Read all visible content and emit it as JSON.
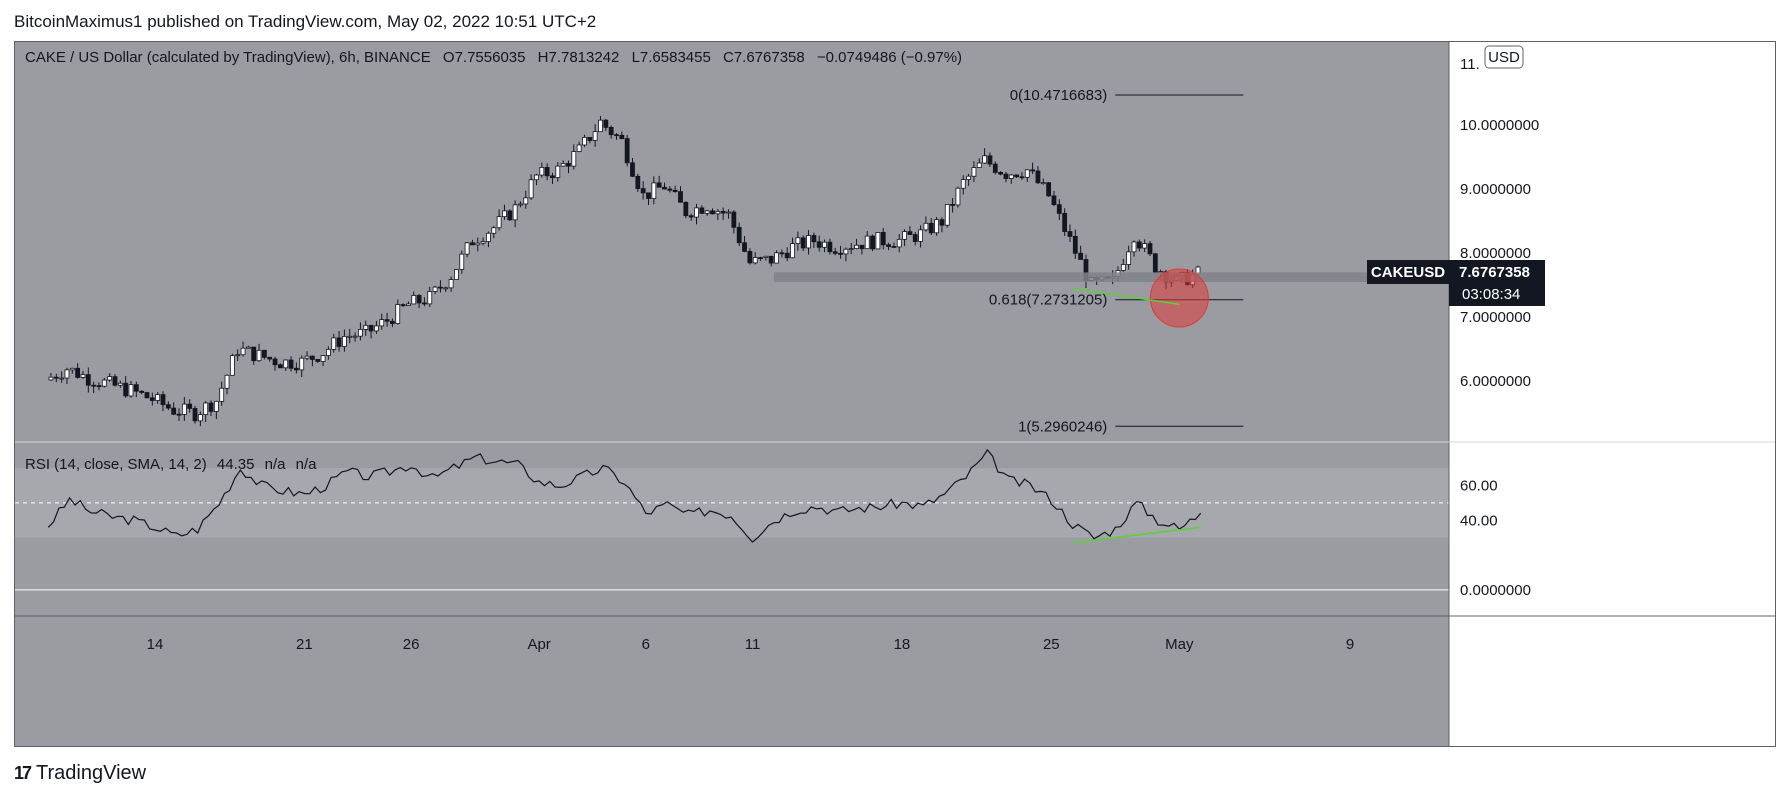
{
  "published_by": "BitcoinMaximus1 published on TradingView.com, May 02, 2022 10:51 UTC+2",
  "header": {
    "symbol": "CAKE / US Dollar (calculated by TradingView), 6h, BINANCE",
    "o_label": "O",
    "o_value": "7.7556035",
    "h_label": "H",
    "h_value": "7.7813242",
    "l_label": "L",
    "l_value": "7.6583455",
    "c_label": "C",
    "c_value": "7.6767358",
    "change": "−0.0749486 (−0.97%)"
  },
  "currency_label": "USD",
  "price_tag": {
    "symbol": "CAKEUSD",
    "price": "7.6767358",
    "countdown": "03:08:34"
  },
  "rsi_legend": {
    "label": "RSI (14, close, SMA, 14, 2)",
    "value": "44.35",
    "na1": "n/a",
    "na2": "n/a"
  },
  "footer_brand": "TradingView",
  "colors": {
    "price_bg": "#9a9ca1",
    "rsi_band": "#a6a8ad",
    "up_candle": "#ffffff",
    "down_candle": "#131722",
    "support_zone": "#7f8288",
    "highlight_circle": "#e03a3a",
    "divergence_line": "#5ad13a"
  },
  "chart_data": [
    {
      "type": "candlestick",
      "title": "CAKE / US Dollar (calculated by TradingView), 6h, BINANCE",
      "timeframe": "6h",
      "y_axis": {
        "ticks": [
          6,
          7,
          8,
          9,
          10
        ],
        "tick_labels": [
          "6.0000000",
          "7.0000000",
          "8.0000000",
          "9.0000000",
          "10.0000000"
        ],
        "top_label_partial": "11.",
        "range": [
          5.05,
          11.3
        ]
      },
      "x_axis": {
        "tick_labels": [
          "14",
          "21",
          "26",
          "Apr",
          "6",
          "11",
          "18",
          "25",
          "May",
          "9"
        ]
      },
      "close_path": [
        [
          "2022-03-09",
          6.02
        ],
        [
          "2022-03-10",
          6.2
        ],
        [
          "2022-03-11",
          6.05
        ],
        [
          "2022-03-12",
          5.95
        ],
        [
          "2022-03-13",
          5.85
        ],
        [
          "2022-03-14",
          5.72
        ],
        [
          "2022-03-15",
          5.55
        ],
        [
          "2022-03-16",
          5.5
        ],
        [
          "2022-03-17",
          5.7
        ],
        [
          "2022-03-18",
          6.5
        ],
        [
          "2022-03-19",
          6.4
        ],
        [
          "2022-03-20",
          6.3
        ],
        [
          "2022-03-21",
          6.3
        ],
        [
          "2022-03-22",
          6.45
        ],
        [
          "2022-03-23",
          6.7
        ],
        [
          "2022-03-24",
          6.75
        ],
        [
          "2022-03-25",
          6.95
        ],
        [
          "2022-03-26",
          7.2
        ],
        [
          "2022-03-27",
          7.3
        ],
        [
          "2022-03-28",
          7.65
        ],
        [
          "2022-03-29",
          8.2
        ],
        [
          "2022-03-30",
          8.4
        ],
        [
          "2022-03-31",
          8.7
        ],
        [
          "2022-04-01",
          9.2
        ],
        [
          "2022-04-02",
          9.3
        ],
        [
          "2022-04-03",
          9.6
        ],
        [
          "2022-04-04",
          10.05
        ],
        [
          "2022-04-05",
          9.75
        ],
        [
          "2022-04-06",
          8.9
        ],
        [
          "2022-04-07",
          9.05
        ],
        [
          "2022-04-08",
          8.65
        ],
        [
          "2022-04-09",
          8.75
        ],
        [
          "2022-04-10",
          8.6
        ],
        [
          "2022-04-11",
          7.85
        ],
        [
          "2022-04-12",
          7.9
        ],
        [
          "2022-04-13",
          8.1
        ],
        [
          "2022-04-14",
          8.2
        ],
        [
          "2022-04-15",
          8.1
        ],
        [
          "2022-04-16",
          8.15
        ],
        [
          "2022-04-17",
          8.2
        ],
        [
          "2022-04-18",
          8.2
        ],
        [
          "2022-04-19",
          8.3
        ],
        [
          "2022-04-20",
          8.5
        ],
        [
          "2022-04-21",
          9.1
        ],
        [
          "2022-04-22",
          9.45
        ],
        [
          "2022-04-23",
          9.25
        ],
        [
          "2022-04-24",
          9.3
        ],
        [
          "2022-04-25",
          8.9
        ],
        [
          "2022-04-26",
          8.2
        ],
        [
          "2022-04-27",
          7.5
        ],
        [
          "2022-04-28",
          7.55
        ],
        [
          "2022-04-29",
          8.3
        ],
        [
          "2022-04-30",
          7.8
        ],
        [
          "2022-05-01",
          7.55
        ],
        [
          "2022-05-02",
          7.68
        ]
      ],
      "fibonacci": [
        {
          "level": "0",
          "price": 10.4716683,
          "label": "0(10.4716683)"
        },
        {
          "level": "0.618",
          "price": 7.2731205,
          "label": "0.618(7.2731205)"
        },
        {
          "level": "1",
          "price": 5.2960246,
          "label": "1(5.2960246)"
        }
      ],
      "support_zone": [
        7.55,
        7.7
      ],
      "last_price": 7.6767358
    },
    {
      "type": "line",
      "title": "RSI (14, close, SMA, 14, 2)",
      "y_axis": {
        "tick_labels": [
          "0.0000000",
          "40.00",
          "60.00"
        ],
        "ticks": [
          0,
          40,
          60
        ],
        "band": [
          30,
          70
        ],
        "midline": 50,
        "range": [
          -15,
          85
        ]
      },
      "series": [
        {
          "name": "RSI",
          "values": [
            [
              "2022-03-09",
              37
            ],
            [
              "2022-03-10",
              52
            ],
            [
              "2022-03-11",
              45
            ],
            [
              "2022-03-12",
              42
            ],
            [
              "2022-03-13",
              40
            ],
            [
              "2022-03-14",
              36
            ],
            [
              "2022-03-15",
              31
            ],
            [
              "2022-03-16",
              35
            ],
            [
              "2022-03-17",
              50
            ],
            [
              "2022-03-18",
              70
            ],
            [
              "2022-03-19",
              60
            ],
            [
              "2022-03-20",
              57
            ],
            [
              "2022-03-21",
              55
            ],
            [
              "2022-03-22",
              60
            ],
            [
              "2022-03-23",
              68
            ],
            [
              "2022-03-24",
              65
            ],
            [
              "2022-03-25",
              68
            ],
            [
              "2022-03-26",
              72
            ],
            [
              "2022-03-27",
              64
            ],
            [
              "2022-03-28",
              70
            ],
            [
              "2022-03-29",
              76
            ],
            [
              "2022-03-30",
              74
            ],
            [
              "2022-03-31",
              72
            ],
            [
              "2022-04-01",
              62
            ],
            [
              "2022-04-02",
              60
            ],
            [
              "2022-04-03",
              65
            ],
            [
              "2022-04-04",
              70
            ],
            [
              "2022-04-05",
              62
            ],
            [
              "2022-04-06",
              44
            ],
            [
              "2022-04-07",
              49
            ],
            [
              "2022-04-08",
              43
            ],
            [
              "2022-04-09",
              46
            ],
            [
              "2022-04-10",
              43
            ],
            [
              "2022-04-11",
              30
            ],
            [
              "2022-04-12",
              40
            ],
            [
              "2022-04-13",
              46
            ],
            [
              "2022-04-14",
              48
            ],
            [
              "2022-04-15",
              45
            ],
            [
              "2022-04-16",
              47
            ],
            [
              "2022-04-17",
              48
            ],
            [
              "2022-04-18",
              50
            ],
            [
              "2022-04-19",
              48
            ],
            [
              "2022-04-20",
              55
            ],
            [
              "2022-04-21",
              65
            ],
            [
              "2022-04-22",
              78
            ],
            [
              "2022-04-23",
              63
            ],
            [
              "2022-04-24",
              60
            ],
            [
              "2022-04-25",
              52
            ],
            [
              "2022-04-26",
              38
            ],
            [
              "2022-04-27",
              30
            ],
            [
              "2022-04-28",
              35
            ],
            [
              "2022-04-29",
              50
            ],
            [
              "2022-04-30",
              40
            ],
            [
              "2022-05-01",
              35
            ],
            [
              "2022-05-02",
              44
            ]
          ]
        }
      ]
    }
  ]
}
